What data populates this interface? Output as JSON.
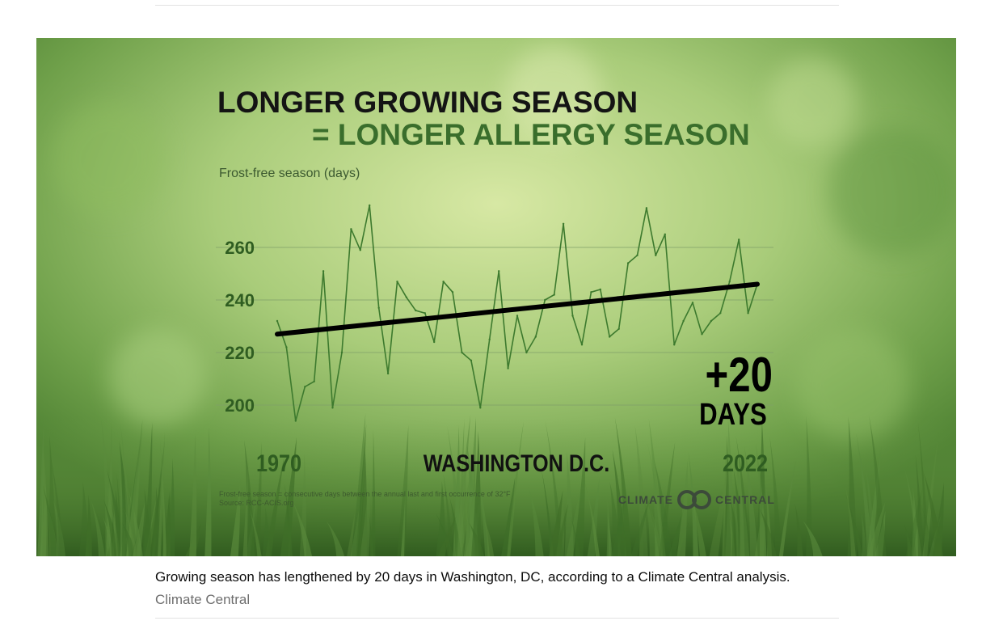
{
  "figure": {
    "title_line1": "LONGER GROWING SEASON",
    "title_line2": "= LONGER ALLERGY SEASON",
    "location": "WASHINGTON D.C.",
    "badge_number": "+20",
    "badge_unit": "DAYS",
    "footnote_line1": "Frost-free season = consecutive days between the annual last and first occurrence of 32°F",
    "footnote_line2": "Source: RCC-ACIS.org",
    "logo_left": "CLIMATE",
    "logo_right": "CENTRAL"
  },
  "caption": {
    "text": "Growing season has lengthened by 20 days in Washington, DC, according to a Climate Central analysis.",
    "credit": "Climate Central"
  },
  "colors": {
    "title_dark": "#141414",
    "title_green": "#3a6e2c",
    "axis_green": "#2f5d21",
    "series_line": "#3d7a2e",
    "trend_line": "#000000"
  },
  "chart_data": {
    "type": "line",
    "title": "LONGER GROWING SEASON = LONGER ALLERGY SEASON",
    "ylabel": "Frost-free season (days)",
    "xlabel": "",
    "x_range": [
      1970,
      2022
    ],
    "x_tick_labels": [
      "1970",
      "2022"
    ],
    "y_ticks": [
      200,
      220,
      240,
      260
    ],
    "ylim": [
      190,
      280
    ],
    "grid": true,
    "series": [
      {
        "name": "Frost-free season",
        "x": [
          1970,
          1971,
          1972,
          1973,
          1974,
          1975,
          1976,
          1977,
          1978,
          1979,
          1980,
          1981,
          1982,
          1983,
          1984,
          1985,
          1986,
          1987,
          1988,
          1989,
          1990,
          1991,
          1992,
          1993,
          1994,
          1995,
          1996,
          1997,
          1998,
          1999,
          2000,
          2001,
          2002,
          2003,
          2004,
          2005,
          2006,
          2007,
          2008,
          2009,
          2010,
          2011,
          2012,
          2013,
          2014,
          2015,
          2016,
          2017,
          2018,
          2019,
          2020,
          2021,
          2022
        ],
        "values": [
          232,
          222,
          194,
          207,
          209,
          251,
          199,
          220,
          267,
          259,
          276,
          237,
          212,
          247,
          241,
          236,
          235,
          224,
          247,
          243,
          220,
          217,
          199,
          225,
          251,
          214,
          234,
          220,
          226,
          240,
          242,
          269,
          234,
          223,
          243,
          244,
          226,
          229,
          254,
          257,
          275,
          257,
          265,
          223,
          232,
          239,
          227,
          232,
          235,
          247,
          263,
          235,
          246
        ]
      },
      {
        "name": "Trend",
        "x": [
          1970,
          2022
        ],
        "values": [
          227,
          246
        ]
      }
    ],
    "annotations": [
      "+20 DAYS",
      "WASHINGTON D.C."
    ]
  }
}
